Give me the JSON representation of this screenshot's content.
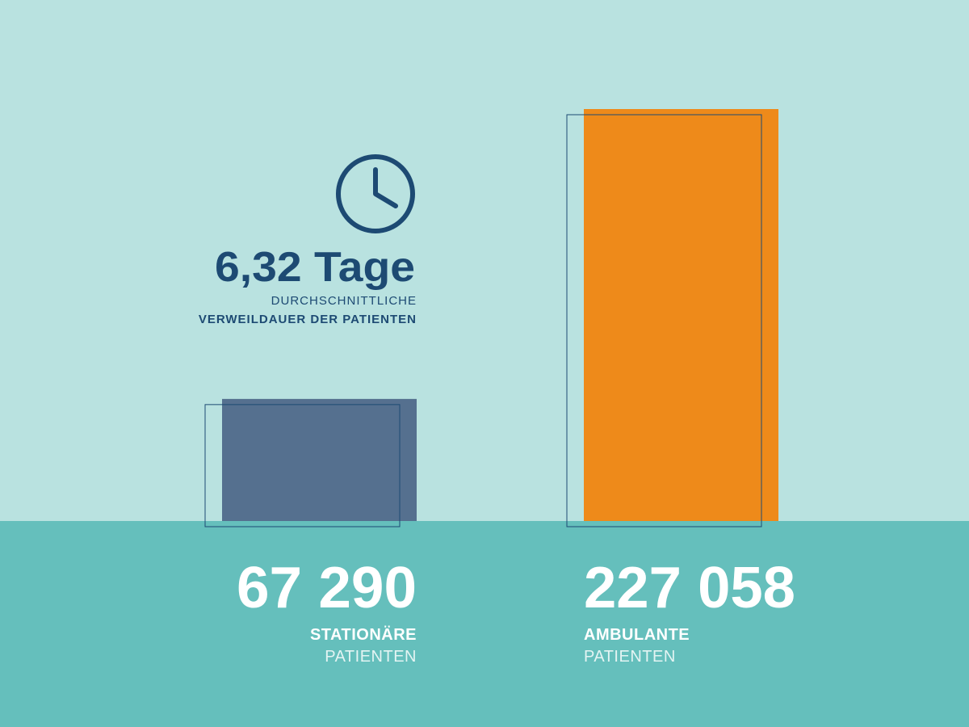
{
  "chart_data": {
    "type": "bar",
    "categories": [
      "STATIONÄRE",
      "AMBULANTE"
    ],
    "category_sublabels": [
      "PATIENTEN",
      "PATIENTEN"
    ],
    "values": [
      67290,
      227058
    ],
    "value_labels": [
      "67 290",
      "227 058"
    ],
    "colors": [
      "#55708f",
      "#ee8a1a"
    ],
    "annotation": {
      "value": "6,32 Tage",
      "line1": "DURCHSCHNITTLICHE",
      "line2": "VERWEILDAUER DER PATIENTEN"
    }
  }
}
